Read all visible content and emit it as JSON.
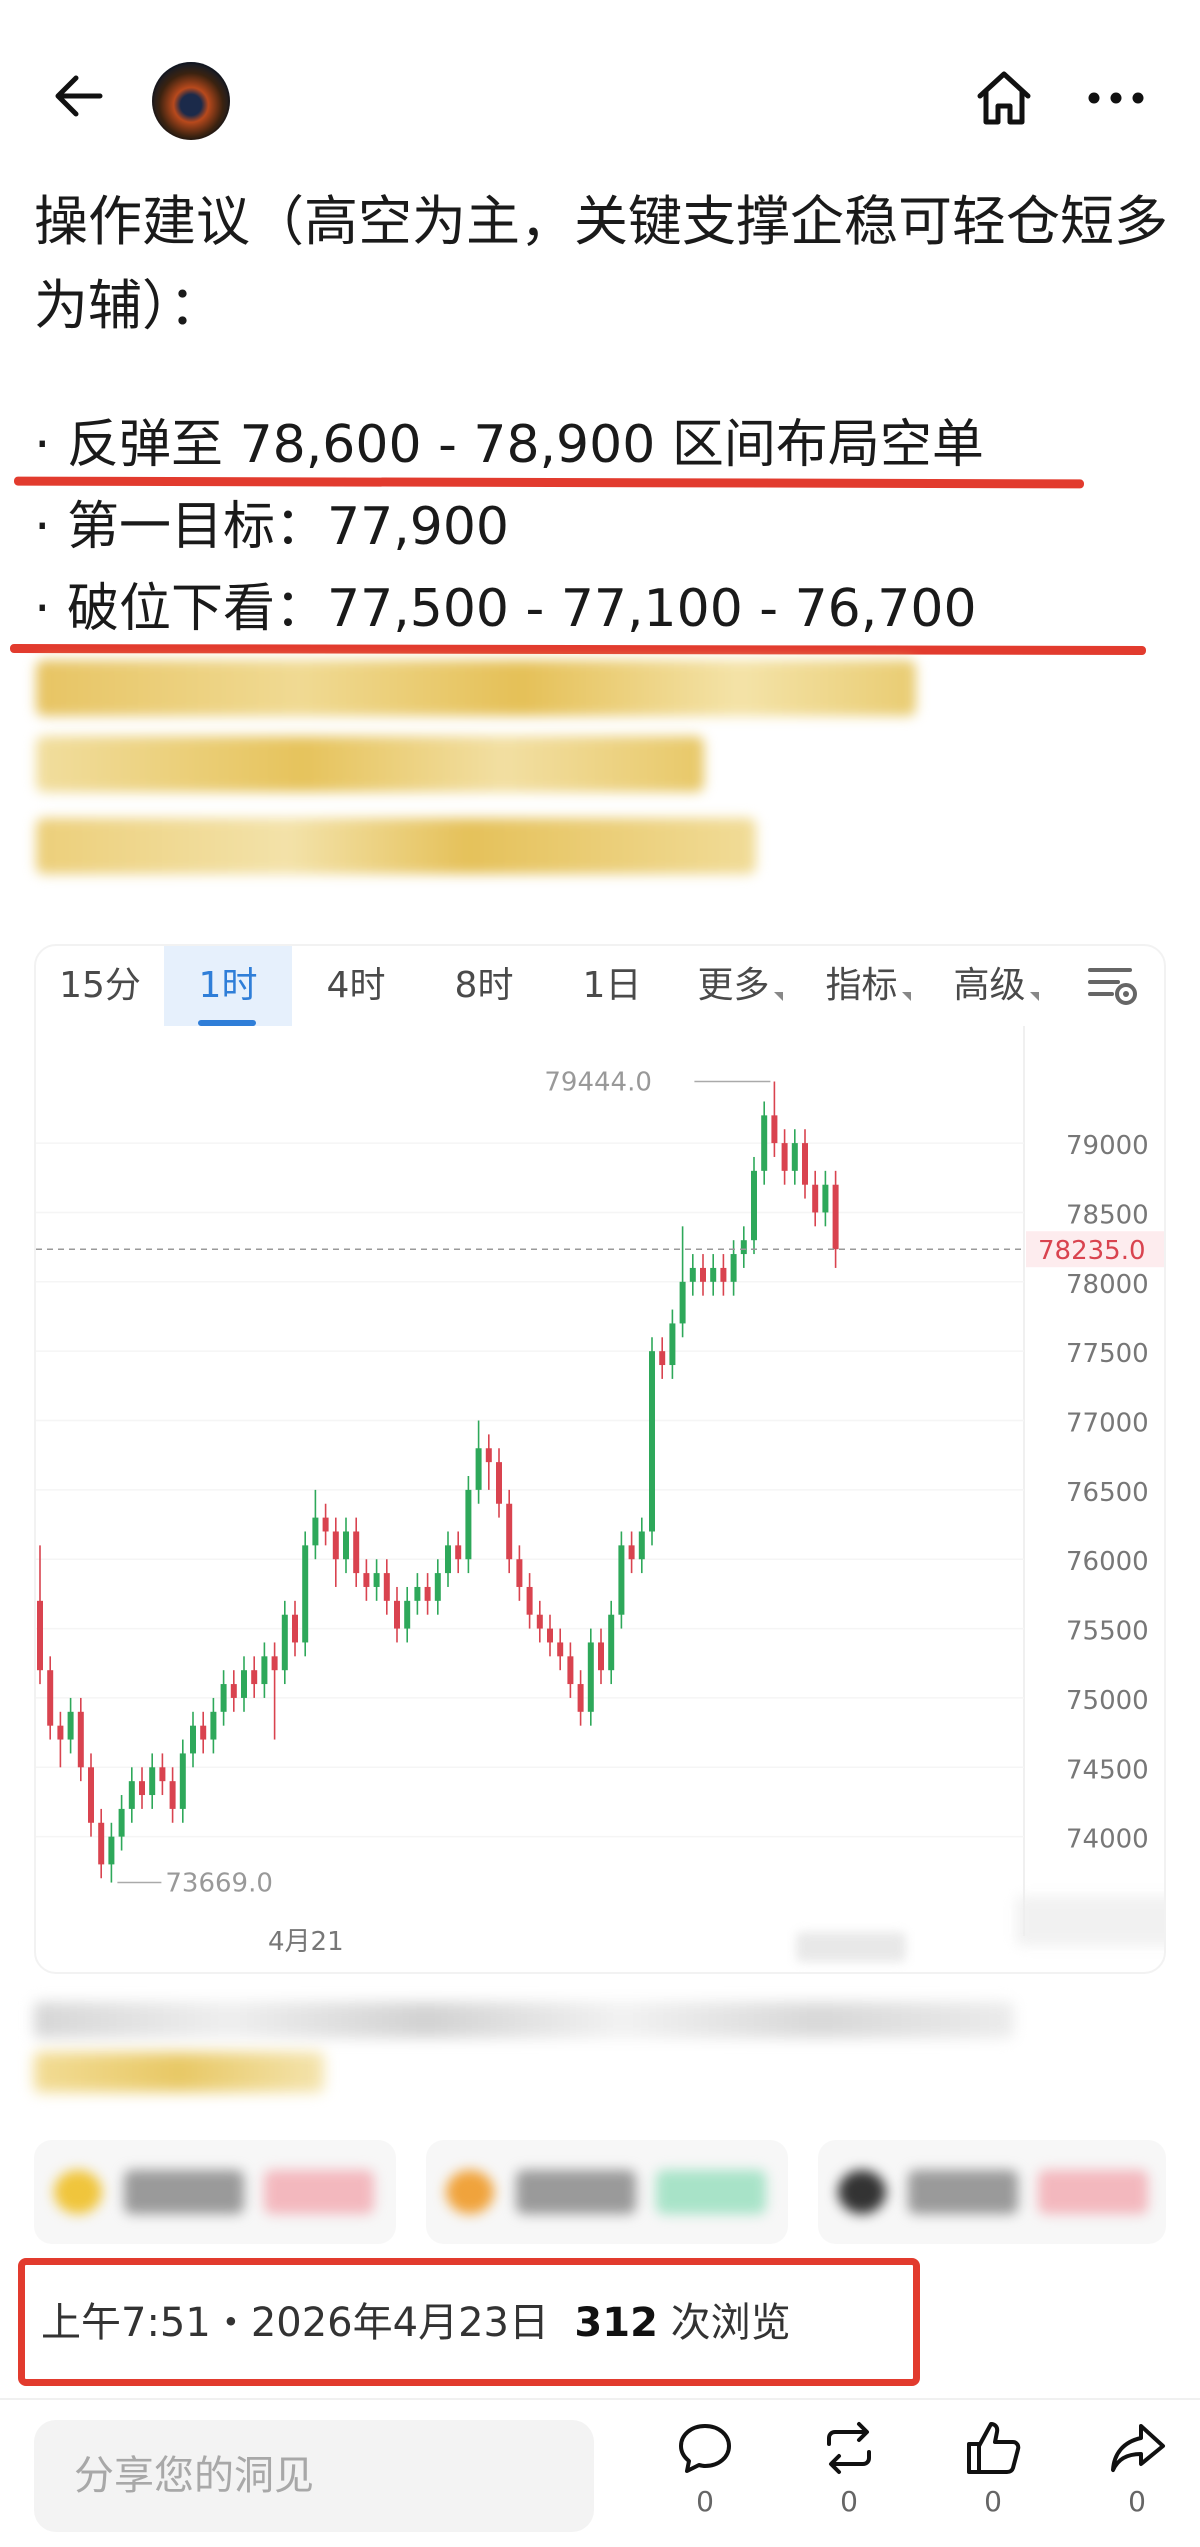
{
  "post": {
    "title": "操作建议（高空为主，关键支撑企稳可轻仓短多为辅）：",
    "bullets": [
      "· 反弹至 78,600 - 78,900 区间布局空单",
      "· 第一目标：77,900",
      "· 破位下看：77,500 - 77,100 - 76,700"
    ]
  },
  "chart": {
    "tabs": [
      {
        "label": "15分",
        "active": false
      },
      {
        "label": "1时",
        "active": true
      },
      {
        "label": "4时",
        "active": false
      },
      {
        "label": "8时",
        "active": false
      },
      {
        "label": "1日",
        "active": false
      },
      {
        "label": "更多",
        "active": false,
        "dropdown": true
      },
      {
        "label": "指标",
        "active": false,
        "dropdown": true
      },
      {
        "label": "高级",
        "active": false,
        "dropdown": true
      }
    ],
    "settings_icon": "chart-settings-icon"
  },
  "chart_data": {
    "type": "candlestick",
    "y_ticks": [
      74000,
      74500,
      75000,
      75500,
      76000,
      76500,
      77000,
      77500,
      78000,
      78500,
      79000
    ],
    "ylim": [
      73500,
      79700
    ],
    "x_tick_labels": [
      "4月21"
    ],
    "high_label": "79444.0",
    "low_label": "73669.0",
    "current_price": "78235.0",
    "colors": {
      "up": "#2ea85a",
      "down": "#d9434f",
      "price_line": "#999999",
      "price_tag": "#d9434f"
    },
    "candles": [
      [
        75700,
        75200,
        76100,
        75100
      ],
      [
        75200,
        74800,
        75300,
        74700
      ],
      [
        74800,
        74700,
        74900,
        74500
      ],
      [
        74700,
        74900,
        75000,
        74600
      ],
      [
        74900,
        74500,
        75000,
        74400
      ],
      [
        74500,
        74100,
        74600,
        74000
      ],
      [
        74100,
        73800,
        74200,
        73700
      ],
      [
        73800,
        74000,
        74100,
        73669
      ],
      [
        74000,
        74200,
        74300,
        73900
      ],
      [
        74200,
        74400,
        74500,
        74100
      ],
      [
        74400,
        74300,
        74500,
        74200
      ],
      [
        74300,
        74500,
        74600,
        74200
      ],
      [
        74500,
        74400,
        74600,
        74300
      ],
      [
        74400,
        74200,
        74500,
        74100
      ],
      [
        74200,
        74600,
        74700,
        74100
      ],
      [
        74600,
        74800,
        74900,
        74500
      ],
      [
        74800,
        74700,
        74900,
        74600
      ],
      [
        74700,
        74900,
        75000,
        74600
      ],
      [
        74900,
        75100,
        75200,
        74800
      ],
      [
        75100,
        75000,
        75200,
        74900
      ],
      [
        75000,
        75200,
        75300,
        74900
      ],
      [
        75200,
        75100,
        75300,
        75000
      ],
      [
        75100,
        75300,
        75400,
        75000
      ],
      [
        75300,
        75200,
        75400,
        74700
      ],
      [
        75200,
        75600,
        75700,
        75100
      ],
      [
        75600,
        75400,
        75700,
        75300
      ],
      [
        75400,
        76100,
        76200,
        75300
      ],
      [
        76100,
        76300,
        76500,
        76000
      ],
      [
        76300,
        76200,
        76400,
        76100
      ],
      [
        76200,
        76000,
        76300,
        75800
      ],
      [
        76000,
        76200,
        76300,
        75900
      ],
      [
        76200,
        75900,
        76300,
        75800
      ],
      [
        75900,
        75800,
        76000,
        75700
      ],
      [
        75800,
        75900,
        76000,
        75700
      ],
      [
        75900,
        75700,
        76000,
        75600
      ],
      [
        75700,
        75500,
        75800,
        75400
      ],
      [
        75500,
        75700,
        75800,
        75400
      ],
      [
        75700,
        75800,
        75900,
        75600
      ],
      [
        75800,
        75700,
        75900,
        75600
      ],
      [
        75700,
        75900,
        76000,
        75600
      ],
      [
        75900,
        76100,
        76200,
        75800
      ],
      [
        76100,
        76000,
        76200,
        75900
      ],
      [
        76000,
        76500,
        76600,
        75900
      ],
      [
        76500,
        76800,
        77000,
        76400
      ],
      [
        76800,
        76700,
        76900,
        76500
      ],
      [
        76700,
        76400,
        76800,
        76300
      ],
      [
        76400,
        76000,
        76500,
        75900
      ],
      [
        76000,
        75800,
        76100,
        75700
      ],
      [
        75800,
        75600,
        75900,
        75500
      ],
      [
        75600,
        75500,
        75700,
        75400
      ],
      [
        75500,
        75400,
        75600,
        75300
      ],
      [
        75400,
        75300,
        75500,
        75200
      ],
      [
        75300,
        75100,
        75400,
        75000
      ],
      [
        75100,
        74900,
        75200,
        74800
      ],
      [
        74900,
        75400,
        75500,
        74800
      ],
      [
        75400,
        75200,
        75500,
        75100
      ],
      [
        75200,
        75600,
        75700,
        75100
      ],
      [
        75600,
        76100,
        76200,
        75500
      ],
      [
        76100,
        76000,
        76200,
        75900
      ],
      [
        76000,
        76200,
        76300,
        75900
      ],
      [
        76200,
        77500,
        77600,
        76100
      ],
      [
        77500,
        77400,
        77600,
        77300
      ],
      [
        77400,
        77700,
        77800,
        77300
      ],
      [
        77700,
        78000,
        78400,
        77600
      ],
      [
        78000,
        78100,
        78200,
        77900
      ],
      [
        78100,
        78000,
        78200,
        77900
      ],
      [
        78000,
        78100,
        78200,
        77900
      ],
      [
        78100,
        78000,
        78200,
        77900
      ],
      [
        78000,
        78200,
        78300,
        77900
      ],
      [
        78200,
        78300,
        78400,
        78100
      ],
      [
        78300,
        78800,
        78900,
        78200
      ],
      [
        78800,
        79200,
        79300,
        78700
      ],
      [
        79200,
        79000,
        79444,
        78900
      ],
      [
        79000,
        78800,
        79100,
        78700
      ],
      [
        78800,
        79000,
        79100,
        78700
      ],
      [
        79000,
        78700,
        79100,
        78600
      ],
      [
        78700,
        78500,
        78800,
        78400
      ],
      [
        78500,
        78700,
        78800,
        78400
      ],
      [
        78700,
        78235,
        78800,
        78100
      ]
    ]
  },
  "footer": {
    "timestamp_prefix": "上午7:51・2026年4月23日",
    "views_count": "312",
    "views_suffix": "次浏览"
  },
  "bottom_bar": {
    "share_placeholder": "分享您的洞见",
    "actions": [
      {
        "icon": "comment-icon",
        "count": "0"
      },
      {
        "icon": "repost-icon",
        "count": "0"
      },
      {
        "icon": "like-icon",
        "count": "0"
      },
      {
        "icon": "share-icon",
        "count": "0"
      }
    ]
  }
}
